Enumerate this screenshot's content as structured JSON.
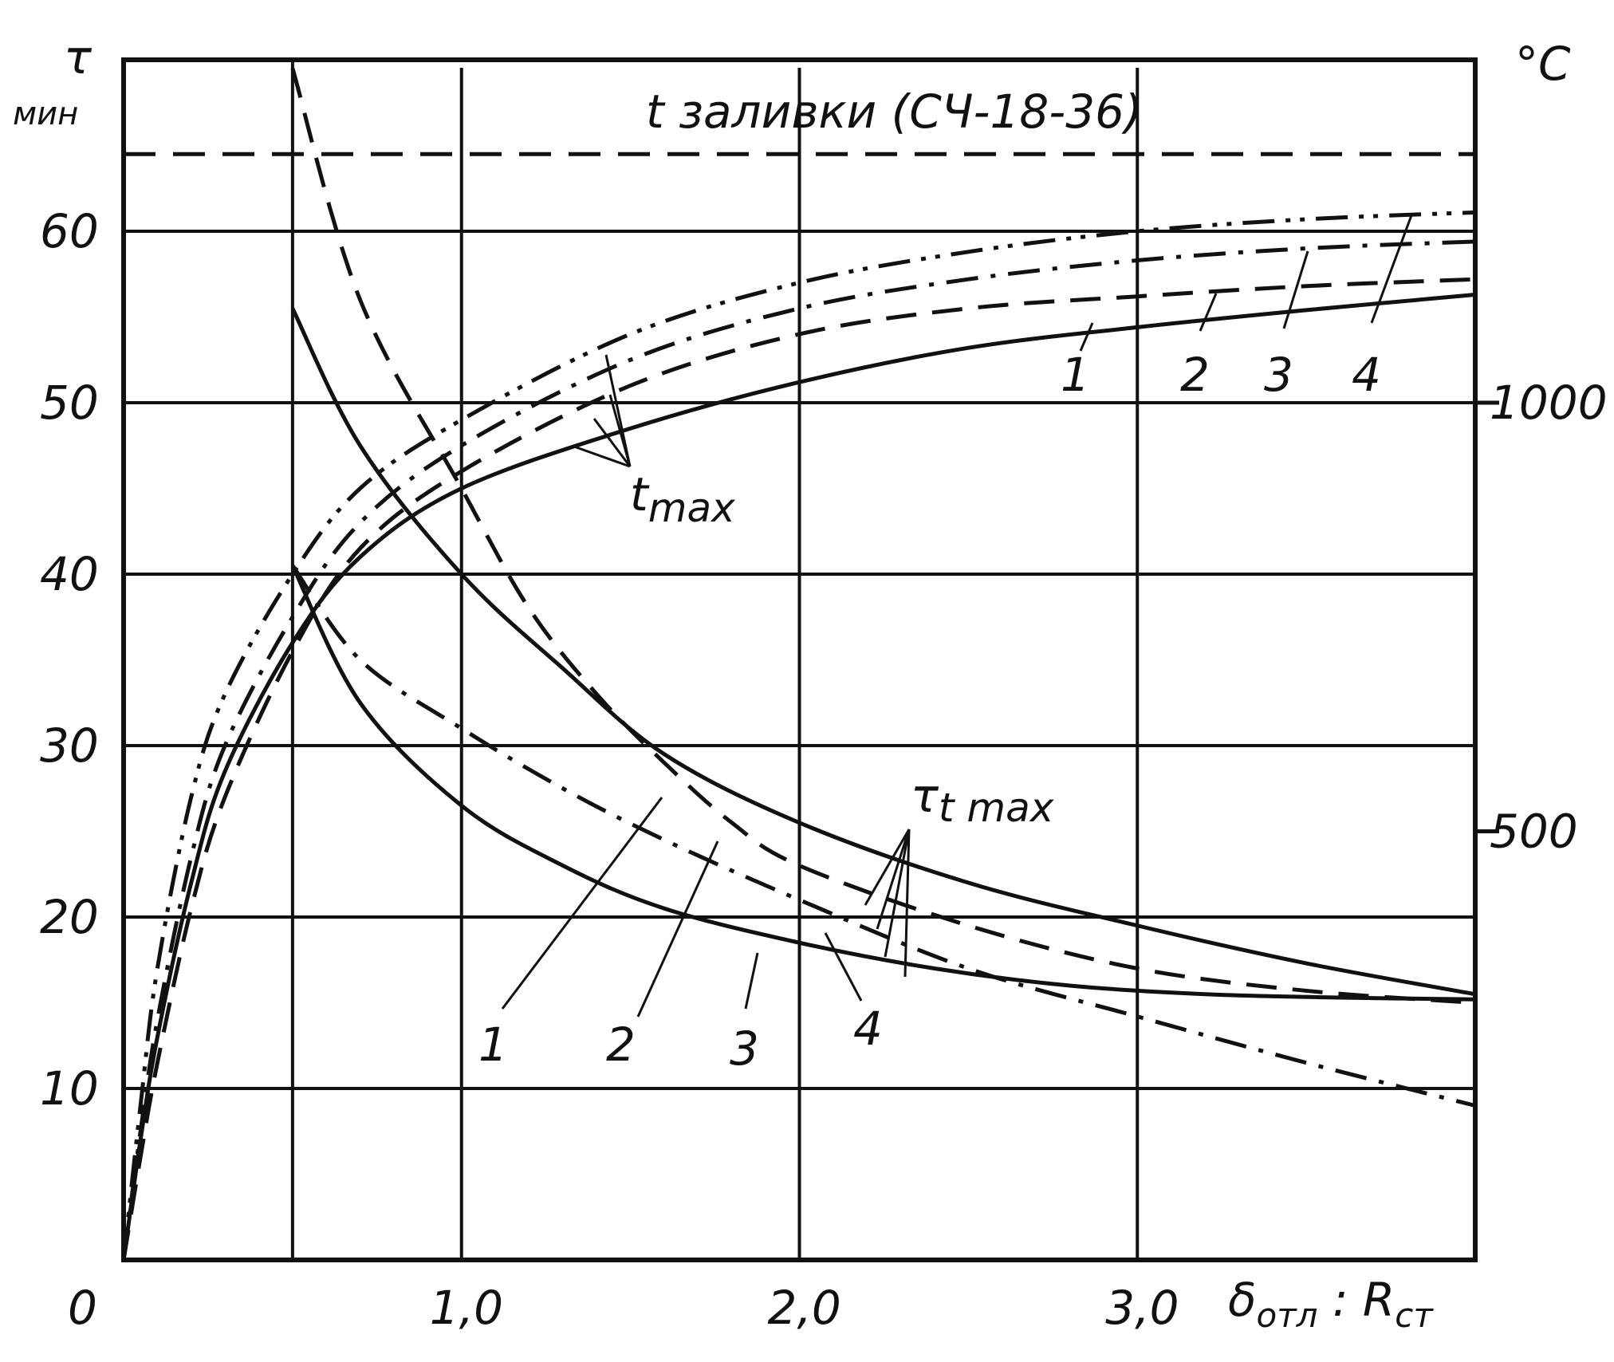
{
  "chart_data": {
    "type": "line",
    "title": "t заливки (СЧ-18-36)",
    "xlabel_main": "δ",
    "xlabel_sub1": "отл",
    "xlabel_colon": " : R",
    "xlabel_sub2": "ст",
    "ylabel_left_symbol": "τ",
    "ylabel_left_unit": "мин",
    "ylabel_right": "°C",
    "xlim": [
      0,
      4.0
    ],
    "ylim_left": [
      0,
      70
    ],
    "ylim_right": [
      0,
      1400
    ],
    "grid": true,
    "x_ticks": [
      {
        "value": 0,
        "label": "0"
      },
      {
        "value": 1.0,
        "label": "1,0"
      },
      {
        "value": 2.0,
        "label": "2,0"
      },
      {
        "value": 3.0,
        "label": "3,0"
      }
    ],
    "y_left_ticks": [
      {
        "value": 10,
        "label": "10"
      },
      {
        "value": 20,
        "label": "20"
      },
      {
        "value": 30,
        "label": "30"
      },
      {
        "value": 40,
        "label": "40"
      },
      {
        "value": 50,
        "label": "50"
      },
      {
        "value": 60,
        "label": "60"
      }
    ],
    "y_right_ticks": [
      {
        "value": 500,
        "label": "500"
      },
      {
        "value": 1000,
        "label": "1000"
      }
    ],
    "pour_temperature_c": 1290,
    "t_max_curves": [
      {
        "name": "1",
        "style": "solid",
        "points": [
          [
            0,
            0
          ],
          [
            0.05,
            7
          ],
          [
            0.1,
            13
          ],
          [
            0.2,
            22
          ],
          [
            0.3,
            28.5
          ],
          [
            0.5,
            36
          ],
          [
            0.7,
            41
          ],
          [
            1.0,
            45
          ],
          [
            1.5,
            48.5
          ],
          [
            2.0,
            51.2
          ],
          [
            2.5,
            53.2
          ],
          [
            3.0,
            54.4
          ],
          [
            3.5,
            55.4
          ],
          [
            4.0,
            56.3
          ]
        ]
      },
      {
        "name": "2",
        "style": "dash",
        "points": [
          [
            0,
            0
          ],
          [
            0.05,
            6
          ],
          [
            0.1,
            11.5
          ],
          [
            0.2,
            20.5
          ],
          [
            0.3,
            27
          ],
          [
            0.5,
            35.5
          ],
          [
            0.7,
            41.5
          ],
          [
            1.0,
            46
          ],
          [
            1.5,
            51
          ],
          [
            2.0,
            54
          ],
          [
            2.5,
            55.5
          ],
          [
            3.0,
            56.2
          ],
          [
            3.5,
            56.8
          ],
          [
            4.0,
            57.2
          ]
        ]
      },
      {
        "name": "3",
        "style": "dashdot",
        "points": [
          [
            0,
            0
          ],
          [
            0.05,
            7.5
          ],
          [
            0.1,
            14
          ],
          [
            0.2,
            23.5
          ],
          [
            0.3,
            30
          ],
          [
            0.5,
            37.5
          ],
          [
            0.7,
            43
          ],
          [
            1.0,
            47.5
          ],
          [
            1.5,
            52.5
          ],
          [
            2.0,
            55.5
          ],
          [
            2.5,
            57.2
          ],
          [
            3.0,
            58.3
          ],
          [
            3.5,
            59
          ],
          [
            4.0,
            59.4
          ]
        ]
      },
      {
        "name": "4",
        "style": "dashdotdot",
        "points": [
          [
            0,
            0
          ],
          [
            0.05,
            9
          ],
          [
            0.1,
            17
          ],
          [
            0.2,
            27
          ],
          [
            0.3,
            33
          ],
          [
            0.5,
            40
          ],
          [
            0.7,
            45
          ],
          [
            1.0,
            49
          ],
          [
            1.5,
            54
          ],
          [
            2.0,
            57
          ],
          [
            2.5,
            58.8
          ],
          [
            3.0,
            60
          ],
          [
            3.5,
            60.7
          ],
          [
            4.0,
            61.1
          ]
        ]
      }
    ],
    "tau_t_max_curves": [
      {
        "name": "1",
        "style": "solid",
        "points": [
          [
            0.5,
            55.5
          ],
          [
            0.7,
            47.5
          ],
          [
            1.0,
            40
          ],
          [
            1.3,
            34.5
          ],
          [
            1.6,
            29.5
          ],
          [
            2.0,
            25.5
          ],
          [
            2.5,
            22
          ],
          [
            3.0,
            19.5
          ],
          [
            3.5,
            17.3
          ],
          [
            4.0,
            15.5
          ]
        ]
      },
      {
        "name": "2",
        "style": "dash",
        "points": [
          [
            0.5,
            69.5
          ],
          [
            0.7,
            56
          ],
          [
            1.0,
            45
          ],
          [
            1.2,
            38
          ],
          [
            1.4,
            33
          ],
          [
            1.6,
            29
          ],
          [
            1.8,
            25.5
          ],
          [
            2.0,
            23
          ],
          [
            2.5,
            19.5
          ],
          [
            3.0,
            17
          ],
          [
            3.5,
            15.7
          ],
          [
            4.0,
            15
          ]
        ]
      },
      {
        "name": "3",
        "style": "dashdot",
        "points": [
          [
            0.5,
            40.5
          ],
          [
            0.7,
            35
          ],
          [
            1.0,
            31
          ],
          [
            1.3,
            27.5
          ],
          [
            1.6,
            24.5
          ],
          [
            2.0,
            21
          ],
          [
            2.5,
            17
          ],
          [
            3.0,
            14.2
          ],
          [
            3.5,
            11.5
          ],
          [
            4.0,
            9
          ]
        ]
      },
      {
        "name": "4",
        "style": "solid",
        "points": [
          [
            0.5,
            40.5
          ],
          [
            0.7,
            32.5
          ],
          [
            1.0,
            26.5
          ],
          [
            1.3,
            23
          ],
          [
            1.6,
            20.5
          ],
          [
            2.0,
            18.5
          ],
          [
            2.4,
            17
          ],
          [
            2.8,
            16
          ],
          [
            3.2,
            15.5
          ],
          [
            3.6,
            15.3
          ],
          [
            4.0,
            15.2
          ]
        ]
      }
    ],
    "annotations": {
      "t_max_label": "t",
      "t_max_sub": "max",
      "tau_t_max_label": "τ",
      "tau_t_max_sub": "t max"
    }
  }
}
